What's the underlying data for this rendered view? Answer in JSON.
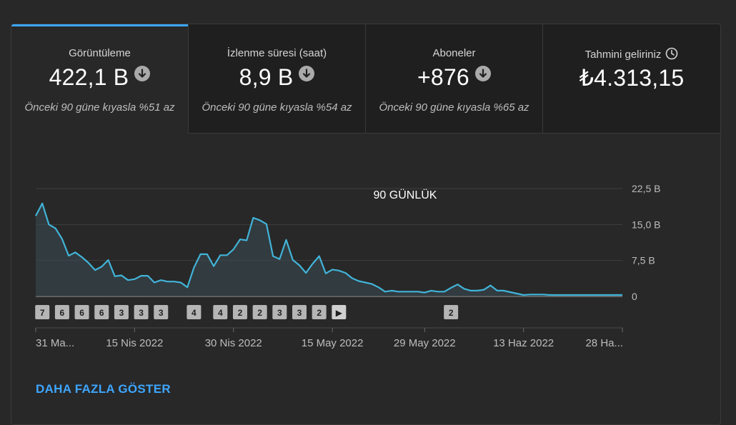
{
  "tabs": [
    {
      "label": "Görüntüleme",
      "value": "422,1 B",
      "trend_icon": "arrow-down-circle-icon",
      "compare": "Önceki 90 güne kıyasla %51 az",
      "active": true
    },
    {
      "label": "İzlenme süresi (saat)",
      "value": "8,9 B",
      "trend_icon": "arrow-down-circle-icon",
      "compare": "Önceki 90 güne kıyasla %54 az",
      "active": false
    },
    {
      "label": "Aboneler",
      "value": "+876",
      "trend_icon": "arrow-down-circle-icon",
      "compare": "Önceki 90 güne kıyasla %65 az",
      "active": false
    },
    {
      "label": "Tahmini geliriniz",
      "value": "₺4.313,15",
      "info_icon": "clock-icon",
      "active": false
    }
  ],
  "colors": {
    "accent": "#3ea6ff",
    "line": "#41b4d9",
    "background": "#282828"
  },
  "chart_data": {
    "type": "area",
    "title": "90 GÜNLÜK",
    "ylim": [
      0,
      22.5
    ],
    "yticks": [
      0,
      7.5,
      15.0,
      22.5
    ],
    "ytick_labels": [
      "0",
      "7,5 B",
      "15,0 B",
      "22,5 B"
    ],
    "xtick_labels": [
      "31 Ma...",
      "15 Nis 2022",
      "30 Nis 2022",
      "15 May 2022",
      "29 May 2022",
      "13 Haz 2022",
      "28 Ha..."
    ],
    "xtick_indices": [
      0,
      15,
      30,
      45,
      59,
      74,
      89
    ],
    "grid": true,
    "values": [
      16.8,
      19.4,
      15.0,
      14.2,
      12.0,
      8.5,
      9.2,
      8.2,
      7.0,
      5.5,
      6.2,
      7.6,
      4.2,
      4.4,
      3.4,
      3.6,
      4.3,
      4.3,
      2.9,
      3.4,
      3.1,
      3.1,
      2.9,
      1.9,
      6.0,
      8.8,
      8.8,
      6.3,
      8.6,
      8.6,
      9.8,
      11.9,
      11.7,
      16.4,
      15.9,
      15.1,
      8.4,
      7.8,
      11.8,
      7.6,
      6.5,
      4.9,
      6.8,
      8.4,
      4.8,
      5.6,
      5.4,
      4.9,
      3.8,
      3.2,
      2.9,
      2.6,
      1.9,
      1.0,
      1.2,
      1.0,
      1.0,
      1.0,
      1.0,
      0.8,
      1.2,
      1.0,
      1.0,
      1.8,
      2.5,
      1.6,
      1.2,
      1.2,
      1.4,
      2.3,
      1.2,
      1.2,
      0.9,
      0.6,
      0.3,
      0.4,
      0.4,
      0.4,
      0.3,
      0.3,
      0.3,
      0.3,
      0.3,
      0.3,
      0.3,
      0.3,
      0.3,
      0.3,
      0.3,
      0.3
    ],
    "badges": [
      {
        "index": 1,
        "label": "7"
      },
      {
        "index": 4,
        "label": "6"
      },
      {
        "index": 7,
        "label": "6"
      },
      {
        "index": 10,
        "label": "6"
      },
      {
        "index": 13,
        "label": "3"
      },
      {
        "index": 16,
        "label": "3"
      },
      {
        "index": 19,
        "label": "3"
      },
      {
        "index": 24,
        "label": "4"
      },
      {
        "index": 28,
        "label": "4"
      },
      {
        "index": 31,
        "label": "2"
      },
      {
        "index": 34,
        "label": "2"
      },
      {
        "index": 37,
        "label": "3"
      },
      {
        "index": 40,
        "label": "3"
      },
      {
        "index": 43,
        "label": "2"
      },
      {
        "index": 46,
        "label": "▶"
      },
      {
        "index": 63,
        "label": "2"
      }
    ]
  },
  "more_link": "DAHA FAZLA GÖSTER"
}
